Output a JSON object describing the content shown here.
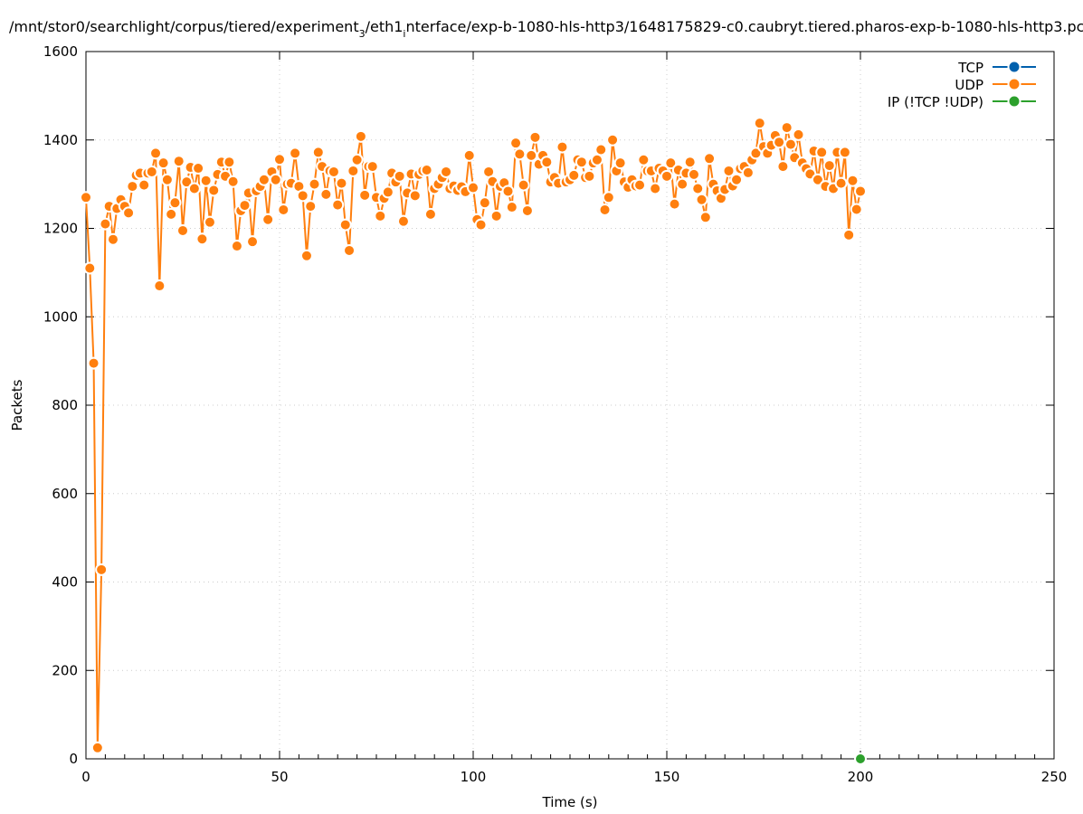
{
  "chart_data": {
    "type": "line",
    "title": "/mnt/stor0/searchlight/corpus/tiered/experiment_3/eth1_interface/exp-b-1080-hls-http3/1648175829-c0.caubryt.tiered.pharos-exp-b-1080-hls-http3.pc",
    "title_main": "/mnt/stor0/searchlight/corpus/tiered/experiment",
    "title_sub1": "3",
    "title_mid": "/eth1",
    "title_sub2": "i",
    "title_rest": "nterface/exp-b-1080-hls-http3/1648175829-c0.caubryt.tiered.pharos-exp-b-1080-hls-http3.pc",
    "xlabel": "Time (s)",
    "ylabel": "Packets",
    "xlim": [
      0,
      250
    ],
    "ylim": [
      0,
      1600
    ],
    "xticks": [
      0,
      50,
      100,
      150,
      200,
      250
    ],
    "yticks": [
      0,
      200,
      400,
      600,
      800,
      1000,
      1200,
      1400,
      1600
    ],
    "grid": true,
    "legend_position": "top-right",
    "series": [
      {
        "name": "TCP",
        "color": "#0060ad",
        "x": [],
        "y": []
      },
      {
        "name": "UDP",
        "color": "#ff7f0e",
        "x": [
          0,
          1,
          2,
          3,
          4,
          5,
          6,
          7,
          8,
          9,
          10,
          11,
          12,
          13,
          14,
          15,
          16,
          17,
          18,
          19,
          20,
          21,
          22,
          23,
          24,
          25,
          26,
          27,
          28,
          29,
          30,
          31,
          32,
          33,
          34,
          35,
          36,
          37,
          38,
          39,
          40,
          41,
          42,
          43,
          44,
          45,
          46,
          47,
          48,
          49,
          50,
          51,
          52,
          53,
          54,
          55,
          56,
          57,
          58,
          59,
          60,
          61,
          62,
          63,
          64,
          65,
          66,
          67,
          68,
          69,
          70,
          71,
          72,
          73,
          74,
          75,
          76,
          77,
          78,
          79,
          80,
          81,
          82,
          83,
          84,
          85,
          86,
          87,
          88,
          89,
          90,
          91,
          92,
          93,
          94,
          95,
          96,
          97,
          98,
          99,
          100,
          101,
          102,
          103,
          104,
          105,
          106,
          107,
          108,
          109,
          110,
          111,
          112,
          113,
          114,
          115,
          116,
          117,
          118,
          119,
          120,
          121,
          122,
          123,
          124,
          125,
          126,
          127,
          128,
          129,
          130,
          131,
          132,
          133,
          134,
          135,
          136,
          137,
          138,
          139,
          140,
          141,
          142,
          143,
          144,
          145,
          146,
          147,
          148,
          149,
          150,
          151,
          152,
          153,
          154,
          155,
          156,
          157,
          158,
          159,
          160,
          161,
          162,
          163,
          164,
          165,
          166,
          167,
          168,
          169,
          170,
          171,
          172,
          173,
          174,
          175,
          176,
          177,
          178,
          179,
          180,
          181,
          182,
          183,
          184,
          185,
          186,
          187,
          188,
          189,
          190,
          191,
          192,
          193,
          194,
          195,
          196,
          197,
          198,
          199,
          200
        ],
        "y": [
          1270,
          1110,
          895,
          25,
          428,
          1210,
          1250,
          1175,
          1245,
          1265,
          1250,
          1235,
          1295,
          1320,
          1325,
          1298,
          1325,
          1328,
          1370,
          1070,
          1348,
          1310,
          1232,
          1258,
          1352,
          1195,
          1305,
          1338,
          1290,
          1336,
          1176,
          1308,
          1214,
          1286,
          1322,
          1350,
          1318,
          1350,
          1306,
          1160,
          1240,
          1252,
          1280,
          1170,
          1285,
          1295,
          1310,
          1220,
          1328,
          1310,
          1356,
          1242,
          1300,
          1302,
          1370,
          1295,
          1274,
          1138,
          1250,
          1300,
          1372,
          1340,
          1277,
          1330,
          1328,
          1253,
          1302,
          1208,
          1150,
          1330,
          1355,
          1408,
          1275,
          1340,
          1340,
          1270,
          1228,
          1268,
          1282,
          1325,
          1305,
          1318,
          1216,
          1280,
          1323,
          1274,
          1322,
          1330,
          1332,
          1232,
          1290,
          1300,
          1315,
          1328,
          1290,
          1296,
          1286,
          1294,
          1283,
          1365,
          1292,
          1220,
          1208,
          1258,
          1328,
          1306,
          1228,
          1295,
          1303,
          1284,
          1248,
          1393,
          1368,
          1298,
          1240,
          1365,
          1406,
          1345,
          1365,
          1350,
          1305,
          1315,
          1302,
          1384,
          1305,
          1310,
          1320,
          1355,
          1350,
          1315,
          1318,
          1348,
          1355,
          1378,
          1242,
          1270,
          1400,
          1330,
          1348,
          1305,
          1293,
          1310,
          1296,
          1298,
          1355,
          1330,
          1330,
          1290,
          1336,
          1330,
          1318,
          1348,
          1255,
          1332,
          1300,
          1325,
          1350,
          1322,
          1290,
          1265,
          1225,
          1358,
          1300,
          1285,
          1268,
          1288,
          1330,
          1296,
          1310,
          1335,
          1340,
          1326,
          1355,
          1370,
          1438,
          1385,
          1370,
          1388,
          1410,
          1395,
          1340,
          1428,
          1390,
          1360,
          1412,
          1348,
          1335,
          1323,
          1375,
          1310,
          1372,
          1295,
          1342,
          1290,
          1372,
          1302,
          1372,
          1185,
          1308,
          1243,
          1284
        ]
      },
      {
        "name": "IP (!TCP  !UDP)",
        "color": "#2ca02c",
        "x": [
          200
        ],
        "y": [
          0
        ]
      }
    ]
  }
}
